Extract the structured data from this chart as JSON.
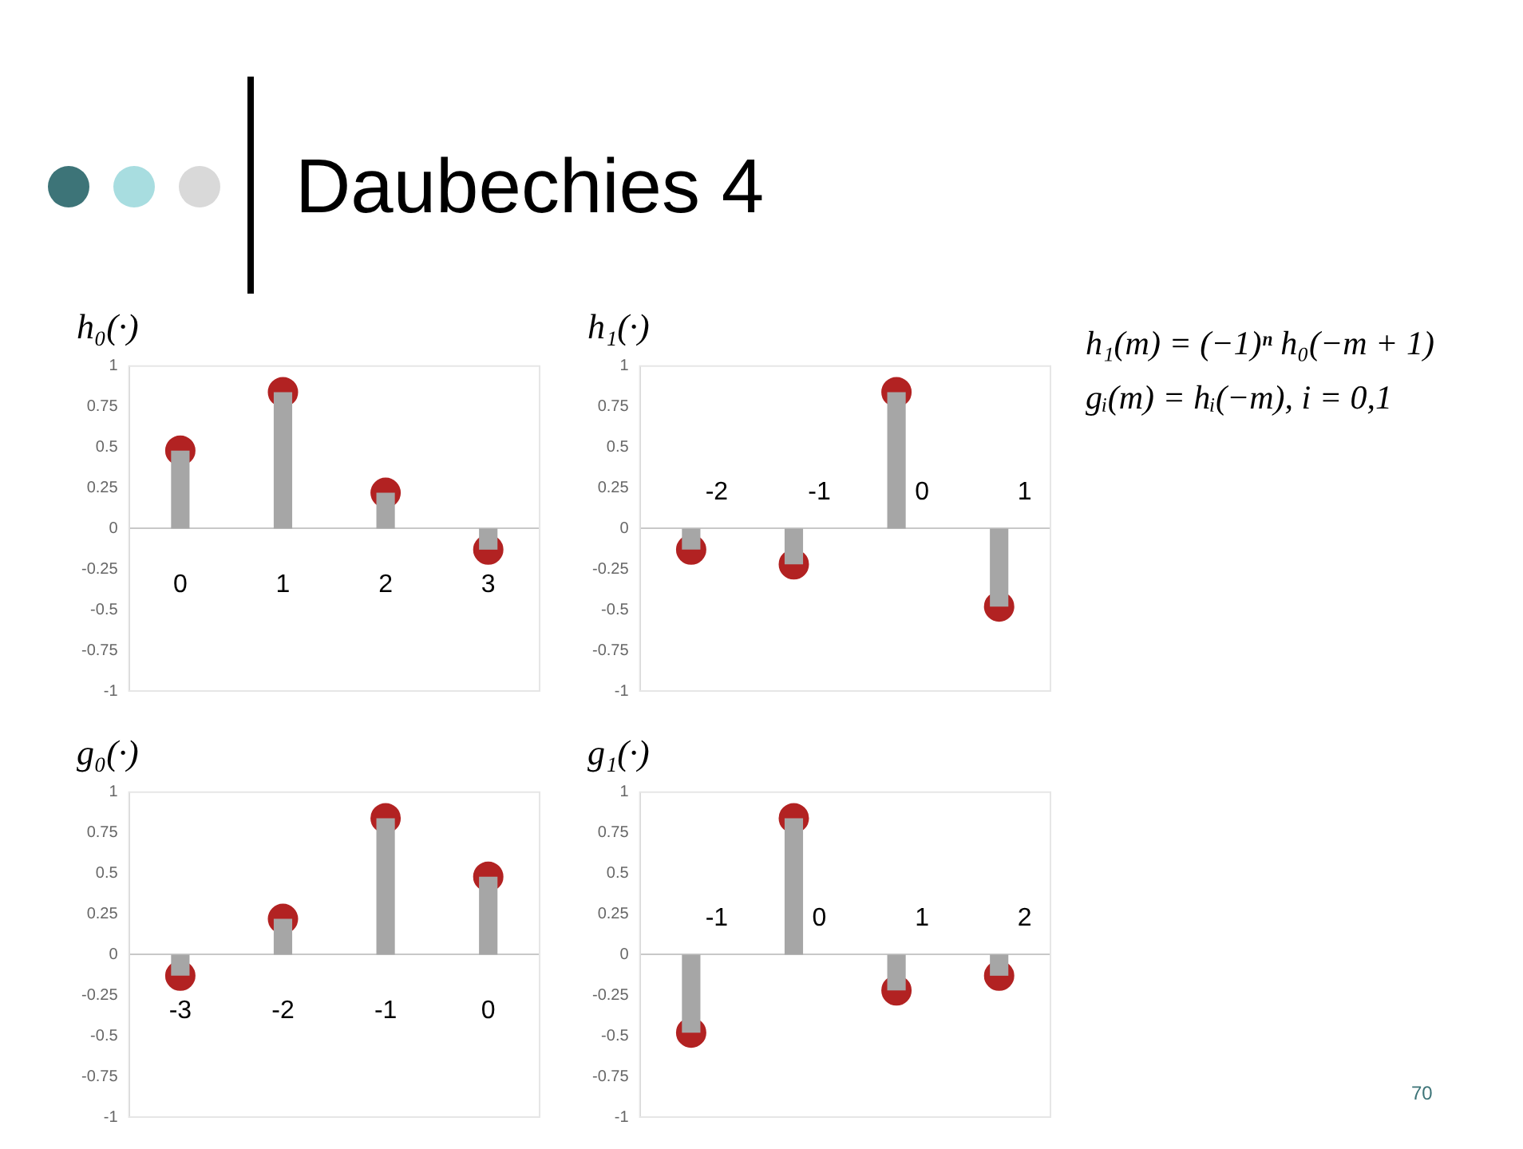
{
  "chart_data": [
    {
      "type": "other",
      "title": "Daubechies 4",
      "annotations": [
        "h₁(m) = (−1)ⁿ h₀(−m + 1)",
        "gᵢ(m) = hᵢ(−m),  i = 0,1",
        "70"
      ]
    },
    {
      "type": "bar",
      "title": "h₀(·)",
      "categories": [
        "0",
        "1",
        "2",
        "3"
      ],
      "series": [
        {
          "type": "bar",
          "color": "#a6a6a6",
          "values": [
            0.48,
            0.84,
            0.22,
            -0.13
          ]
        },
        {
          "type": "scatter",
          "color": "#b22222",
          "values": [
            0.48,
            0.84,
            0.22,
            -0.13
          ]
        }
      ],
      "ylim": [
        -1,
        1
      ],
      "yticks": [
        -1,
        -0.75,
        -0.5,
        -0.25,
        0,
        0.25,
        0.5,
        0.75,
        1
      ],
      "marker": "circle"
    },
    {
      "type": "bar",
      "title": "h₁(·)",
      "categories": [
        "-2",
        "-1",
        "0",
        "1"
      ],
      "series": [
        {
          "type": "bar",
          "color": "#a6a6a6",
          "values": [
            -0.13,
            -0.22,
            0.84,
            -0.48
          ]
        },
        {
          "type": "scatter",
          "color": "#b22222",
          "values": [
            -0.13,
            -0.22,
            0.84,
            -0.48
          ]
        }
      ],
      "ylim": [
        -1,
        1
      ],
      "yticks": [
        -1,
        -0.75,
        -0.5,
        -0.25,
        0,
        0.25,
        0.5,
        0.75,
        1
      ],
      "marker": "circle"
    },
    {
      "type": "bar",
      "title": "g₀(·)",
      "categories": [
        "-3",
        "-2",
        "-1",
        "0"
      ],
      "series": [
        {
          "type": "bar",
          "color": "#a6a6a6",
          "values": [
            -0.13,
            0.22,
            0.84,
            0.48
          ]
        },
        {
          "type": "scatter",
          "color": "#b22222",
          "values": [
            -0.13,
            0.22,
            0.84,
            0.48
          ]
        }
      ],
      "ylim": [
        -1,
        1
      ],
      "yticks": [
        -1,
        -0.75,
        -0.5,
        -0.25,
        0,
        0.25,
        0.5,
        0.75,
        1
      ],
      "marker": "circle"
    },
    {
      "type": "bar",
      "title": "g₁(·)",
      "categories": [
        "-1",
        "0",
        "1",
        "2"
      ],
      "series": [
        {
          "type": "bar",
          "color": "#a6a6a6",
          "values": [
            -0.48,
            0.84,
            -0.22,
            -0.13
          ]
        },
        {
          "type": "scatter",
          "color": "#b22222",
          "values": [
            -0.48,
            0.84,
            -0.22,
            -0.13
          ]
        }
      ],
      "ylim": [
        -1,
        1
      ],
      "yticks": [
        -1,
        -0.75,
        -0.5,
        -0.25,
        0,
        0.25,
        0.5,
        0.75,
        1
      ],
      "marker": "circle"
    }
  ]
}
